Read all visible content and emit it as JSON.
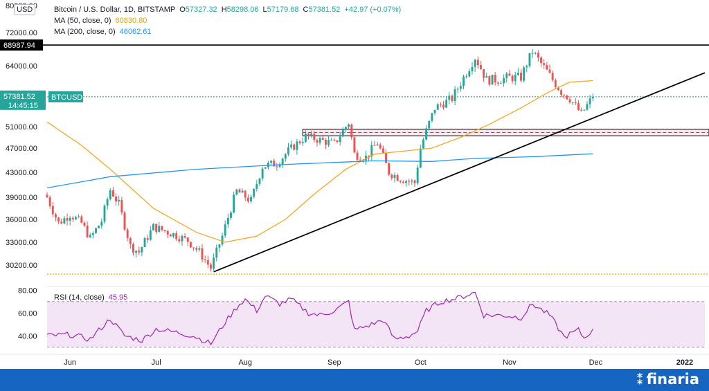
{
  "legend": {
    "symbol": "Bitcoin / U.S. Dollar, 1D, BITSTAMP",
    "o_label": "O",
    "o": "57327.32",
    "h_label": "H",
    "h": "58298.06",
    "l_label": "L",
    "l": "57179.68",
    "c_label": "C",
    "c": "57381.52",
    "change": "+42.97 (+0.07%)",
    "ma50_label": "MA (50, close, 0)",
    "ma50": "60830.80",
    "ma200_label": "MA (200, close, 0)",
    "ma200": "46062.61"
  },
  "currency": "USD",
  "price_tag": {
    "value": "57381.52",
    "time": "14:45:15",
    "ticker": "BTCUSD"
  },
  "resistance_tag": "68987.94",
  "rsi": {
    "label": "RSI (14, close)",
    "value": "45.95"
  },
  "brand": {
    "name": "finaria",
    "mark": "⁑"
  },
  "colors": {
    "up": "#26a69a",
    "down": "#ef5350",
    "ma50": "#f5a623",
    "ma200": "#2196f3",
    "rsi": "#9c27b0",
    "rsi_band": "#f3e5f5",
    "footer": "#1565c0"
  },
  "chart_data": [
    {
      "type": "candlestick",
      "title": "Bitcoin / U.S. Dollar, 1D, BITSTAMP",
      "y_ticks": [
        "80000.00",
        "72000.00",
        "64000.00",
        "51000.00",
        "47000.00",
        "43000.00",
        "39000.00",
        "36000.00",
        "33000.00",
        "30200.00"
      ],
      "y_tick_values": [
        80000,
        72000,
        64000,
        51000,
        47000,
        43000,
        39000,
        36000,
        33000,
        30200
      ],
      "x_ticks": [
        "Jun",
        "Jul",
        "Aug",
        "Sep",
        "Oct",
        "Nov",
        "Dec",
        "2022"
      ],
      "x_tick_dates": [
        "2021-06-01",
        "2021-07-01",
        "2021-08-01",
        "2021-09-01",
        "2021-10-01",
        "2021-11-01",
        "2021-12-01",
        "2022-01-01"
      ],
      "x_range": [
        "2021-05-24",
        "2022-01-08"
      ],
      "ylim": [
        28000,
        80000
      ],
      "last_close": 57381.52,
      "last_date": "2021-11-30",
      "close_anchors": [
        [
          "2021-05-24",
          39000
        ],
        [
          "2021-05-28",
          35500
        ],
        [
          "2021-06-01",
          36700
        ],
        [
          "2021-06-05",
          35500
        ],
        [
          "2021-06-08",
          33500
        ],
        [
          "2021-06-12",
          35800
        ],
        [
          "2021-06-15",
          40200
        ],
        [
          "2021-06-18",
          38000
        ],
        [
          "2021-06-22",
          32500
        ],
        [
          "2021-06-25",
          31800
        ],
        [
          "2021-06-30",
          35000
        ],
        [
          "2021-07-06",
          34200
        ],
        [
          "2021-07-12",
          33200
        ],
        [
          "2021-07-16",
          31800
        ],
        [
          "2021-07-20",
          29800
        ],
        [
          "2021-07-24",
          33800
        ],
        [
          "2021-07-29",
          40000
        ],
        [
          "2021-08-03",
          38500
        ],
        [
          "2021-08-07",
          44000
        ],
        [
          "2021-08-12",
          44500
        ],
        [
          "2021-08-16",
          46500
        ],
        [
          "2021-08-22",
          49200
        ],
        [
          "2021-08-27",
          48500
        ],
        [
          "2021-09-01",
          47800
        ],
        [
          "2021-09-06",
          51800
        ],
        [
          "2021-09-08",
          46000
        ],
        [
          "2021-09-12",
          45500
        ],
        [
          "2021-09-16",
          48000
        ],
        [
          "2021-09-20",
          43000
        ],
        [
          "2021-09-24",
          42000
        ],
        [
          "2021-09-29",
          41300
        ],
        [
          "2021-10-01",
          47000
        ],
        [
          "2021-10-06",
          55000
        ],
        [
          "2021-10-12",
          57000
        ],
        [
          "2021-10-16",
          61500
        ],
        [
          "2021-10-20",
          66000
        ],
        [
          "2021-10-24",
          61000
        ],
        [
          "2021-10-28",
          61000
        ],
        [
          "2021-11-01",
          61500
        ],
        [
          "2021-11-05",
          61500
        ],
        [
          "2021-11-09",
          67500
        ],
        [
          "2021-11-12",
          64500
        ],
        [
          "2021-11-16",
          61000
        ],
        [
          "2021-11-19",
          58500
        ],
        [
          "2021-11-22",
          57000
        ],
        [
          "2021-11-26",
          53700
        ],
        [
          "2021-11-30",
          57381.52
        ]
      ],
      "series": [
        {
          "name": "MA (50, close, 0)",
          "points": [
            [
              "2021-05-24",
              52000
            ],
            [
              "2021-06-05",
              47500
            ],
            [
              "2021-06-15",
              43500
            ],
            [
              "2021-06-30",
              37500
            ],
            [
              "2021-07-15",
              34300
            ],
            [
              "2021-07-25",
              33000
            ],
            [
              "2021-08-05",
              33800
            ],
            [
              "2021-08-15",
              36000
            ],
            [
              "2021-08-25",
              39500
            ],
            [
              "2021-09-05",
              43500
            ],
            [
              "2021-09-15",
              46000
            ],
            [
              "2021-09-25",
              46500
            ],
            [
              "2021-10-05",
              47000
            ],
            [
              "2021-10-15",
              49000
            ],
            [
              "2021-10-25",
              51500
            ],
            [
              "2021-11-05",
              55000
            ],
            [
              "2021-11-15",
              58500
            ],
            [
              "2021-11-22",
              60500
            ],
            [
              "2021-11-30",
              60830.8
            ]
          ]
        },
        {
          "name": "MA (200, close, 0)",
          "points": [
            [
              "2021-05-24",
              40500
            ],
            [
              "2021-06-15",
              42300
            ],
            [
              "2021-07-15",
              43500
            ],
            [
              "2021-08-15",
              44300
            ],
            [
              "2021-09-15",
              44900
            ],
            [
              "2021-10-05",
              44800
            ],
            [
              "2021-10-20",
              45300
            ],
            [
              "2021-11-10",
              45600
            ],
            [
              "2021-11-30",
              46062.61
            ]
          ]
        }
      ],
      "levels": [
        {
          "value": 68987.94,
          "style": "solid",
          "color": "#000000"
        },
        {
          "value": 29000,
          "style": "dotted",
          "color": "#e0a500"
        },
        {
          "value": 57381.52,
          "style": "dotted",
          "color": "#26a69a"
        }
      ],
      "zone": {
        "top": 50500,
        "bottom": 49300,
        "start": "2021-08-21",
        "end": "2022-01-08",
        "color": "#f8bbd0"
      },
      "trendlines": [
        {
          "from": [
            "2021-07-21",
            29300
          ],
          "to": [
            "2022-01-08",
            62500
          ]
        }
      ]
    },
    {
      "type": "line",
      "title": "RSI (14, close)",
      "y_ticks": [
        "80.00",
        "60.00",
        "40.00"
      ],
      "y_tick_values": [
        80,
        60,
        40
      ],
      "ylim": [
        25,
        82
      ],
      "band": [
        30,
        70
      ],
      "last_value": 45.95,
      "anchors": [
        [
          "2021-05-24",
          40
        ],
        [
          "2021-06-01",
          41
        ],
        [
          "2021-06-08",
          37
        ],
        [
          "2021-06-15",
          55
        ],
        [
          "2021-06-20",
          40
        ],
        [
          "2021-06-26",
          36
        ],
        [
          "2021-07-01",
          46
        ],
        [
          "2021-07-08",
          43
        ],
        [
          "2021-07-14",
          40
        ],
        [
          "2021-07-20",
          33
        ],
        [
          "2021-07-25",
          52
        ],
        [
          "2021-07-30",
          68
        ],
        [
          "2021-08-01",
          72
        ],
        [
          "2021-08-05",
          62
        ],
        [
          "2021-08-08",
          75
        ],
        [
          "2021-08-13",
          68
        ],
        [
          "2021-08-17",
          72
        ],
        [
          "2021-08-23",
          60
        ],
        [
          "2021-08-27",
          58
        ],
        [
          "2021-09-01",
          62
        ],
        [
          "2021-09-06",
          70
        ],
        [
          "2021-09-08",
          45
        ],
        [
          "2021-09-14",
          50
        ],
        [
          "2021-09-18",
          54
        ],
        [
          "2021-09-22",
          37
        ],
        [
          "2021-09-27",
          40
        ],
        [
          "2021-09-30",
          44
        ],
        [
          "2021-10-03",
          62
        ],
        [
          "2021-10-08",
          70
        ],
        [
          "2021-10-14",
          73
        ],
        [
          "2021-10-20",
          78
        ],
        [
          "2021-10-23",
          58
        ],
        [
          "2021-10-30",
          58
        ],
        [
          "2021-11-05",
          56
        ],
        [
          "2021-11-09",
          68
        ],
        [
          "2021-11-15",
          58
        ],
        [
          "2021-11-20",
          39
        ],
        [
          "2021-11-25",
          45
        ],
        [
          "2021-11-27",
          38
        ],
        [
          "2021-11-30",
          45.95
        ]
      ]
    }
  ]
}
